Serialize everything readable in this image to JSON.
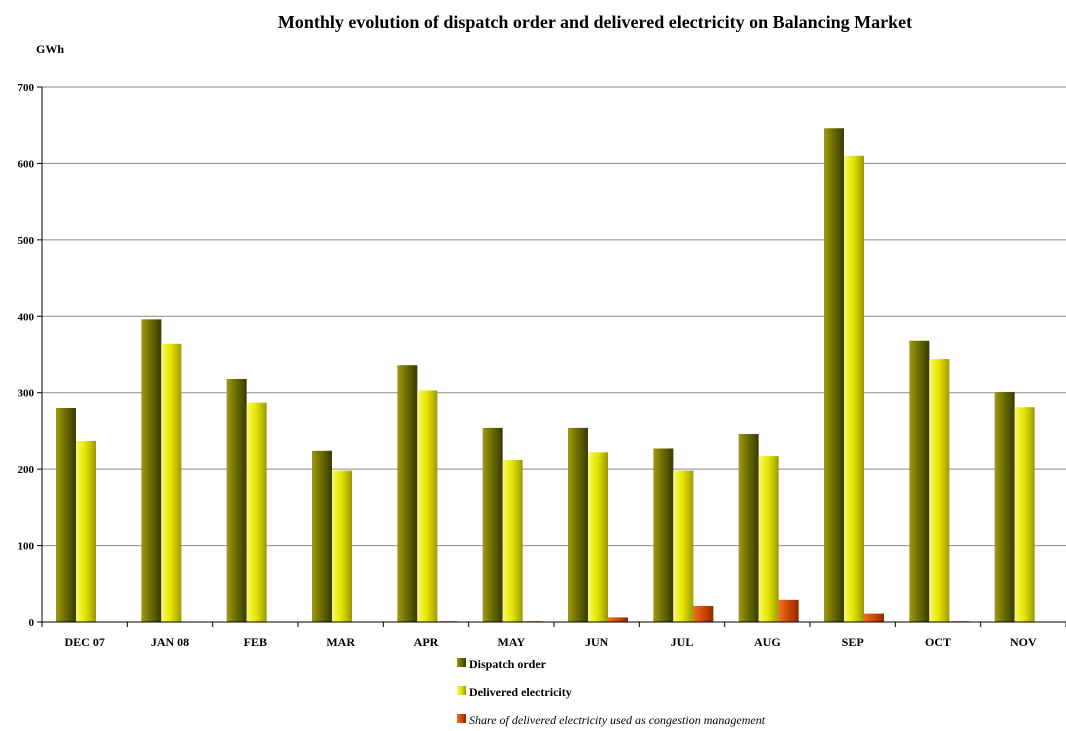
{
  "chart_data": {
    "type": "bar",
    "title": "Monthly evolution of dispatch order and delivered electricity on Balancing Market",
    "unit_label": "GWh",
    "ylim": [
      0,
      700
    ],
    "yticks": [
      0,
      100,
      200,
      300,
      400,
      500,
      600,
      700
    ],
    "grid": true,
    "legend_position": "bottom-center",
    "categories": [
      "DEC 07",
      "JAN 08",
      "FEB",
      "MAR",
      "APR",
      "MAY",
      "JUN",
      "JUL",
      "AUG",
      "SEP",
      "OCT",
      "NOV"
    ],
    "series": [
      {
        "name": "Dispatch order",
        "color": "#6b6b00",
        "italic": false,
        "values": [
          280,
          396,
          318,
          224,
          336,
          254,
          254,
          227,
          246,
          646,
          368,
          301
        ]
      },
      {
        "name": "Delivered electricity",
        "color": "#e6e600",
        "italic": false,
        "values": [
          237,
          364,
          287,
          198,
          303,
          212,
          222,
          198,
          217,
          610,
          344,
          281
        ]
      },
      {
        "name": "Share of delivered electricity used as congestion management",
        "color": "#d84a00",
        "italic": true,
        "values": [
          0,
          0,
          0,
          0,
          1,
          1,
          6,
          21,
          29,
          11,
          1,
          0
        ]
      }
    ]
  }
}
